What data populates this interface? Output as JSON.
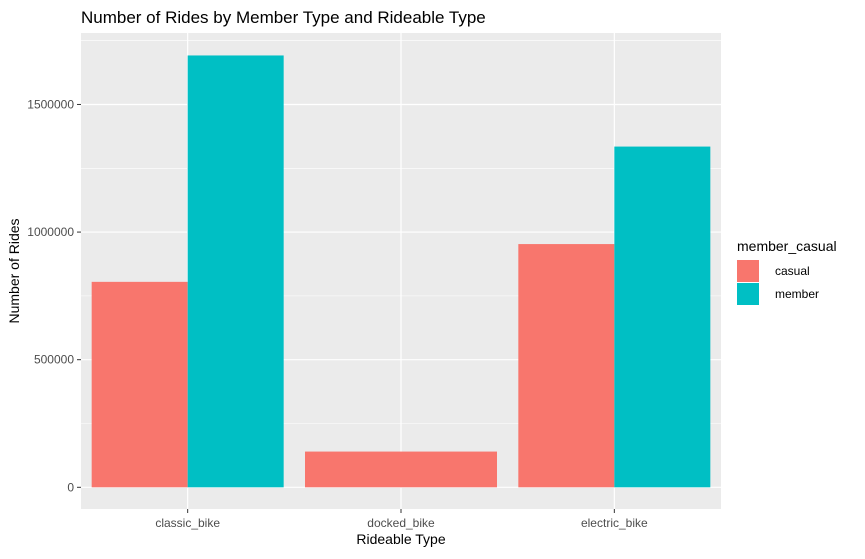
{
  "chart_data": {
    "type": "bar",
    "title": "Number of Rides by Member Type and Rideable Type",
    "xlabel": "Rideable Type",
    "ylabel": "Number of Rides",
    "categories": [
      "classic_bike",
      "docked_bike",
      "electric_bike"
    ],
    "series": [
      {
        "name": "casual",
        "color": "#F8766D",
        "values": [
          805000,
          140000,
          953000
        ]
      },
      {
        "name": "member",
        "color": "#00BFC4",
        "values": [
          1692000,
          null,
          1335000
        ]
      }
    ],
    "ylim": [
      -85000,
      1780000
    ],
    "yticks": [
      0,
      500000,
      1000000,
      1500000
    ],
    "ytick_labels": [
      "0",
      "500000",
      "1000000",
      "1500000"
    ],
    "grid": true,
    "panel_background": "#EBEBEB",
    "legend": {
      "title": "member_casual",
      "placement": "right"
    }
  }
}
